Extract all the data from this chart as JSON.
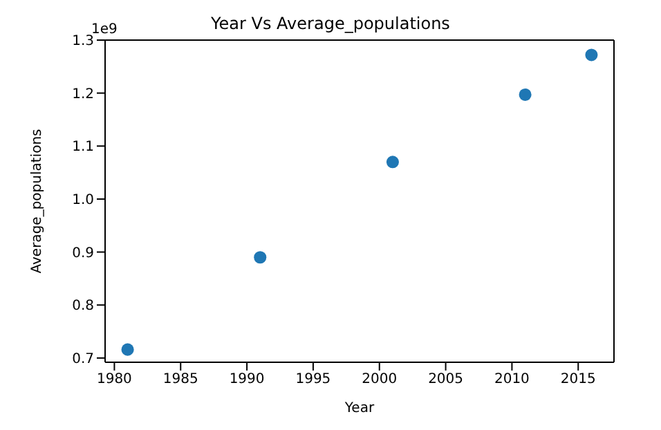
{
  "chart_data": {
    "type": "scatter",
    "title": "Year Vs Average_populations",
    "xlabel": "Year",
    "ylabel": "Average_populations",
    "annotations": [
      "1e9"
    ],
    "x": [
      1981,
      1991,
      2001,
      2011,
      2016
    ],
    "series": [
      {
        "color": "#1f77b4",
        "values": [
          0.716,
          0.89,
          1.07,
          1.197,
          1.272
        ]
      }
    ],
    "xlim": [
      1979.3,
      2017.7
    ],
    "xticks": [
      1980,
      1985,
      1990,
      1995,
      2000,
      2005,
      2010,
      2015
    ],
    "ylim": [
      0.692,
      1.3
    ],
    "yticks": [
      {
        "value": 0.7,
        "label": "0.7"
      },
      {
        "value": 0.8,
        "label": "0.8"
      },
      {
        "value": 0.9,
        "label": "0.9"
      },
      {
        "value": 1.0,
        "label": "1.0"
      },
      {
        "value": 1.1,
        "label": "1.1"
      },
      {
        "value": 1.2,
        "label": "1.2"
      },
      {
        "value": 1.3,
        "label": "1.3"
      }
    ],
    "marker": "circle"
  }
}
